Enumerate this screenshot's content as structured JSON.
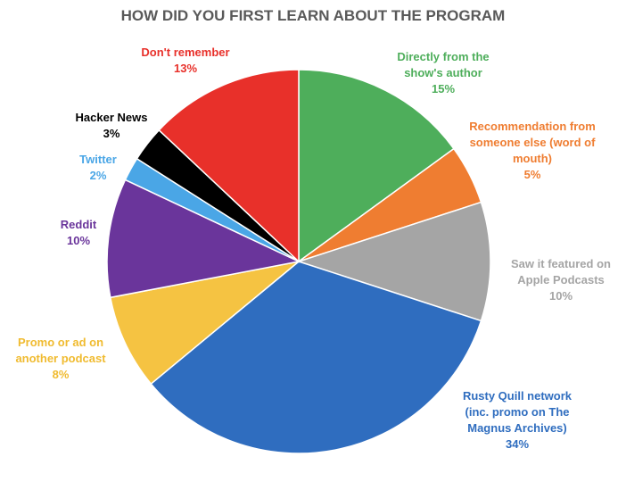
{
  "chart_data": {
    "type": "pie",
    "title": "HOW DID YOU FIRST LEARN ABOUT THE PROGRAM",
    "categories": [
      "Directly from the show's author",
      "Recommendation from someone else (word of mouth)",
      "Saw it featured on Apple Podcasts",
      "Rusty Quill network (inc. promo on The Magnus Archives)",
      "Promo or ad on another podcast",
      "Reddit",
      "Twitter",
      "Hacker News",
      "Don't remember"
    ],
    "values": [
      15,
      5,
      10,
      34,
      8,
      10,
      2,
      3,
      13
    ],
    "value_labels": [
      "15%",
      "5%",
      "10%",
      "34%",
      "8%",
      "10%",
      "2%",
      "3%",
      "13%"
    ],
    "colors": [
      "#4eae5b",
      "#ef7d31",
      "#a5a5a5",
      "#2f6dbf",
      "#f5c342",
      "#6a359b",
      "#4aa6e6",
      "#000000",
      "#e8302a"
    ]
  }
}
